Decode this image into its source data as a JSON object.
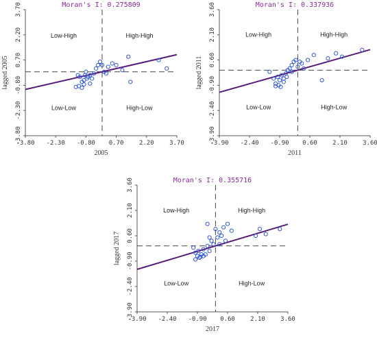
{
  "chart_data": [
    {
      "type": "scatter",
      "title": "Moran's I: 0.275809",
      "xlabel": "2005",
      "ylabel": "lagged 2005",
      "xlim": [
        -3.8,
        3.7
      ],
      "ylim": [
        -3.8,
        3.7
      ],
      "x_ticks": [
        "-3.80",
        "-2.30",
        "-0.80",
        "0.70",
        "2.20",
        "3.70"
      ],
      "x_tick_values": [
        -3.8,
        -2.3,
        -0.8,
        0.7,
        2.2,
        3.7
      ],
      "y_ticks": [
        "-3.80",
        "-2.30",
        "-0.80",
        "0.70",
        "2.20",
        "3.70"
      ],
      "y_tick_values": [
        -3.8,
        -2.3,
        -0.8,
        0.7,
        2.2,
        3.7
      ],
      "quadrants": {
        "top_left": "Low-High",
        "top_right": "High-High",
        "bottom_left": "Low-Low",
        "bottom_right": "High-Low"
      },
      "slope": 0.275809,
      "points": [
        [
          -1.2,
          -0.2
        ],
        [
          -1.1,
          -0.3
        ],
        [
          -1.0,
          -0.6
        ],
        [
          -0.9,
          -0.5
        ],
        [
          -0.85,
          -0.2
        ],
        [
          -0.8,
          0.0
        ],
        [
          -0.75,
          -0.4
        ],
        [
          -0.7,
          -0.3
        ],
        [
          -0.6,
          -0.2
        ],
        [
          -0.5,
          -0.4
        ],
        [
          -0.4,
          -0.1
        ],
        [
          -0.3,
          0.2
        ],
        [
          -0.2,
          0.4
        ],
        [
          -0.1,
          0.6
        ],
        [
          0.0,
          0.4
        ],
        [
          0.1,
          0.0
        ],
        [
          0.2,
          -0.1
        ],
        [
          0.3,
          0.3
        ],
        [
          0.5,
          0.5
        ],
        [
          0.7,
          0.4
        ],
        [
          1.0,
          0.1
        ],
        [
          1.3,
          0.9
        ],
        [
          1.4,
          -0.6
        ],
        [
          2.8,
          0.7
        ],
        [
          3.2,
          0.2
        ],
        [
          -1.3,
          -0.9
        ],
        [
          -1.15,
          -0.85
        ],
        [
          -1.0,
          -0.95
        ],
        [
          -0.9,
          -0.75
        ],
        [
          -0.6,
          -0.7
        ]
      ]
    },
    {
      "type": "scatter",
      "title": "Moran's I: 0.337936",
      "xlabel": "2011",
      "ylabel": "lagged 2011",
      "xlim": [
        -3.9,
        3.6
      ],
      "ylim": [
        -3.9,
        3.6
      ],
      "x_ticks": [
        "-3.90",
        "-2.40",
        "-0.90",
        "0.60",
        "2.10",
        "3.60"
      ],
      "x_tick_values": [
        -3.9,
        -2.4,
        -0.9,
        0.6,
        2.1,
        3.6
      ],
      "y_ticks": [
        "-3.90",
        "-2.40",
        "-0.90",
        "0.60",
        "2.10",
        "3.60"
      ],
      "y_tick_values": [
        -3.9,
        -2.4,
        -0.9,
        0.6,
        2.1,
        3.6
      ],
      "quadrants": {
        "top_left": "Low-High",
        "top_right": "High-High",
        "bottom_left": "Low-Low",
        "bottom_right": "High-Low"
      },
      "slope": 0.337936,
      "points": [
        [
          -1.4,
          -0.1
        ],
        [
          -1.2,
          -0.5
        ],
        [
          -1.1,
          -0.8
        ],
        [
          -1.0,
          -0.4
        ],
        [
          -0.95,
          -0.9
        ],
        [
          -0.9,
          -0.6
        ],
        [
          -0.8,
          -0.3
        ],
        [
          -0.7,
          -0.5
        ],
        [
          -0.6,
          -0.2
        ],
        [
          -0.5,
          0.0
        ],
        [
          -0.4,
          0.1
        ],
        [
          -0.3,
          0.3
        ],
        [
          -0.2,
          0.5
        ],
        [
          -0.1,
          0.6
        ],
        [
          0.0,
          0.2
        ],
        [
          0.1,
          0.5
        ],
        [
          0.2,
          0.4
        ],
        [
          0.3,
          0.1
        ],
        [
          0.5,
          0.6
        ],
        [
          0.8,
          0.9
        ],
        [
          1.2,
          -0.6
        ],
        [
          1.5,
          0.7
        ],
        [
          1.9,
          1.0
        ],
        [
          2.2,
          0.8
        ],
        [
          3.2,
          1.2
        ],
        [
          -1.1,
          -0.95
        ],
        [
          -0.85,
          -1.0
        ],
        [
          -0.7,
          -0.7
        ],
        [
          -0.55,
          -0.4
        ],
        [
          -0.3,
          -0.1
        ]
      ]
    },
    {
      "type": "scatter",
      "title": "Moran's I: 0.355716",
      "xlabel": "2017",
      "ylabel": "lagged 2017",
      "xlim": [
        -3.9,
        3.6
      ],
      "ylim": [
        -3.9,
        3.6
      ],
      "x_ticks": [
        "-3.90",
        "-2.40",
        "-0.90",
        "0.60",
        "2.10",
        "3.60"
      ],
      "x_tick_values": [
        -3.9,
        -2.4,
        -0.9,
        0.6,
        2.1,
        3.6
      ],
      "y_ticks": [
        "-3.90",
        "-2.40",
        "-0.90",
        "0.60",
        "2.10",
        "3.60"
      ],
      "y_tick_values": [
        -3.9,
        -2.4,
        -0.9,
        0.6,
        2.1,
        3.6
      ],
      "quadrants": {
        "top_left": "Low-High",
        "top_right": "High-High",
        "bottom_left": "Low-Low",
        "bottom_right": "High-Low"
      },
      "slope": 0.355716,
      "points": [
        [
          -1.1,
          -0.1
        ],
        [
          -1.0,
          -0.4
        ],
        [
          -0.9,
          -0.6
        ],
        [
          -0.85,
          -0.3
        ],
        [
          -0.8,
          -0.7
        ],
        [
          -0.7,
          -0.5
        ],
        [
          -0.6,
          -0.2
        ],
        [
          -0.5,
          -0.5
        ],
        [
          -0.4,
          0.0
        ],
        [
          -0.3,
          -0.3
        ],
        [
          -0.2,
          0.3
        ],
        [
          -0.1,
          0.1
        ],
        [
          0.0,
          1.0
        ],
        [
          0.1,
          0.5
        ],
        [
          0.2,
          0.8
        ],
        [
          0.3,
          0.6
        ],
        [
          0.4,
          1.1
        ],
        [
          0.5,
          0.3
        ],
        [
          0.6,
          1.3
        ],
        [
          0.8,
          0.9
        ],
        [
          -0.4,
          1.3
        ],
        [
          2.0,
          0.6
        ],
        [
          2.2,
          1.0
        ],
        [
          2.5,
          0.7
        ],
        [
          3.2,
          1.0
        ],
        [
          -1.0,
          -0.8
        ],
        [
          -0.75,
          -0.65
        ],
        [
          -0.6,
          -0.6
        ],
        [
          -0.3,
          0.5
        ],
        [
          0.2,
          0.1
        ]
      ]
    }
  ],
  "colors": {
    "title": "#8b2a9b",
    "regression": "#5a1a7a",
    "points": "#2f58d8",
    "axis": "#555555",
    "dashed": "#444444"
  }
}
